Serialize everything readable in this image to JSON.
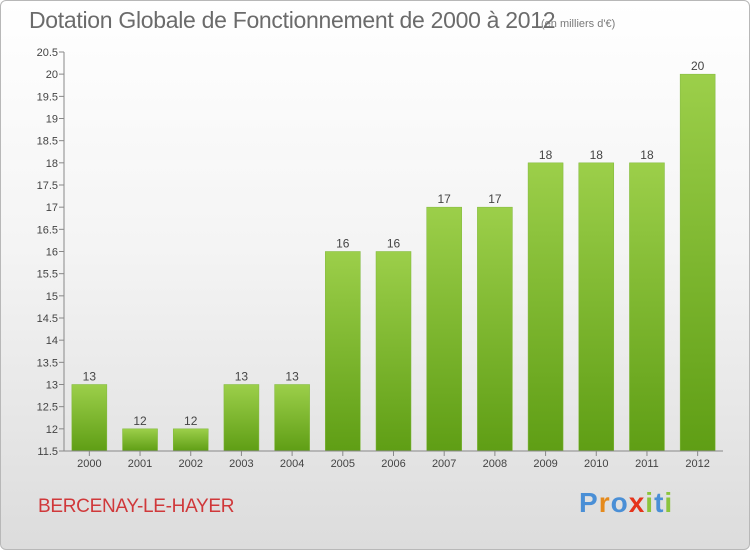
{
  "header": {
    "title": "Dotation Globale de Fonctionnement de 2000 à 2012",
    "subtitle": "(en milliers d'€)"
  },
  "footer": {
    "commune": "BERCENAY-LE-HAYER",
    "logo": "Proxiti"
  },
  "colors": {
    "bar_top": "#9ccf4a",
    "bar_bottom": "#5f9e15",
    "commune_text": "#d0383a",
    "logo_letters": [
      "#4a8fd6",
      "#e58a1c",
      "#4a8fd6",
      "#e5341c",
      "#8cc43c",
      "#4a8fd6",
      "#8cc43c"
    ]
  },
  "chart_data": {
    "type": "bar",
    "title": "Dotation Globale de Fonctionnement de 2000 à 2012",
    "subtitle": "(en milliers d'€)",
    "categories": [
      "2000",
      "2001",
      "2002",
      "2003",
      "2004",
      "2005",
      "2006",
      "2007",
      "2008",
      "2009",
      "2010",
      "2011",
      "2012"
    ],
    "values": [
      13,
      12,
      12,
      13,
      13,
      16,
      16,
      17,
      17,
      18,
      18,
      18,
      20
    ],
    "data_labels": [
      "13",
      "12",
      "12",
      "13",
      "13",
      "16",
      "16",
      "17",
      "17",
      "18",
      "18",
      "18",
      "20"
    ],
    "yticks": [
      "11.5",
      "12",
      "12.5",
      "13",
      "13.5",
      "14",
      "14.5",
      "15",
      "15.5",
      "16",
      "16.5",
      "17",
      "17.5",
      "18",
      "18.5",
      "19",
      "19.5",
      "20",
      "20.5"
    ],
    "ylim": [
      11.5,
      20.5
    ],
    "xlabel": "",
    "ylabel": "",
    "grid": false,
    "legend": "none"
  }
}
